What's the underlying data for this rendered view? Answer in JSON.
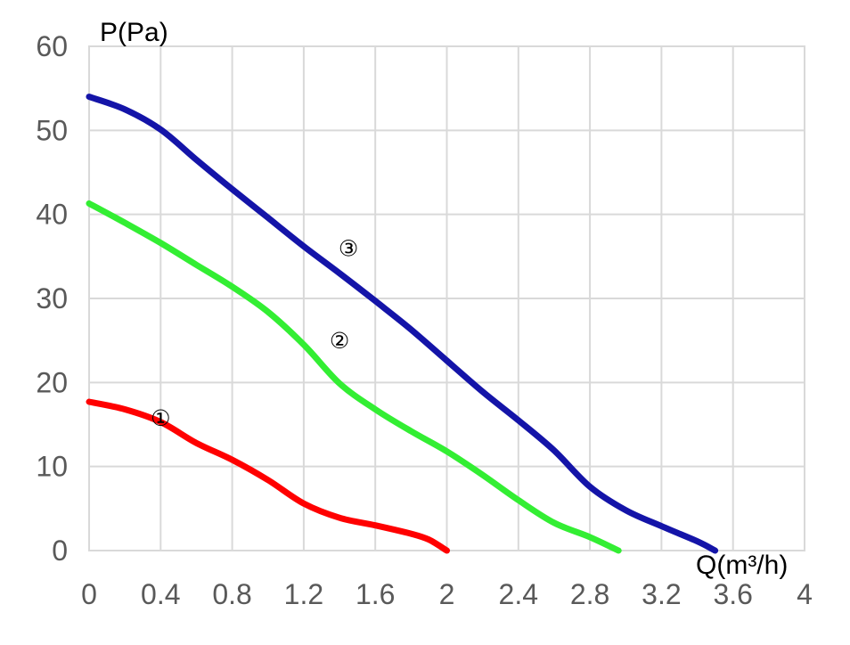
{
  "chart_data": {
    "type": "line",
    "title": "",
    "xlabel": "Q(m³/h)",
    "ylabel": "P(Pa)",
    "xlim": [
      0,
      4
    ],
    "ylim": [
      0,
      60
    ],
    "x_ticks": [
      "0",
      "0.4",
      "0.8",
      "1.2",
      "1.6",
      "2",
      "2.4",
      "2.8",
      "3.2",
      "3.6",
      "4"
    ],
    "y_ticks": [
      "0",
      "10",
      "20",
      "30",
      "40",
      "50",
      "60"
    ],
    "grid": true,
    "legend": "none",
    "series": [
      {
        "marker": "①",
        "color": "#ff0000",
        "marker_at": [
          0.4,
          15.8
        ],
        "points": [
          [
            0,
            17.7
          ],
          [
            0.2,
            16.8
          ],
          [
            0.4,
            15.3
          ],
          [
            0.6,
            12.8
          ],
          [
            0.8,
            10.8
          ],
          [
            1.0,
            8.4
          ],
          [
            1.2,
            5.6
          ],
          [
            1.4,
            3.9
          ],
          [
            1.6,
            3.0
          ],
          [
            1.8,
            2.0
          ],
          [
            1.9,
            1.3
          ],
          [
            2.0,
            0
          ]
        ]
      },
      {
        "marker": "②",
        "color": "#33ee33",
        "marker_at": [
          1.4,
          25.0
        ],
        "points": [
          [
            0,
            41.3
          ],
          [
            0.2,
            39.0
          ],
          [
            0.4,
            36.6
          ],
          [
            0.6,
            34.0
          ],
          [
            0.8,
            31.4
          ],
          [
            1.0,
            28.4
          ],
          [
            1.2,
            24.5
          ],
          [
            1.4,
            19.9
          ],
          [
            1.6,
            16.8
          ],
          [
            1.8,
            14.2
          ],
          [
            2.0,
            11.8
          ],
          [
            2.2,
            9.0
          ],
          [
            2.4,
            6.0
          ],
          [
            2.6,
            3.3
          ],
          [
            2.8,
            1.6
          ],
          [
            2.96,
            0
          ]
        ]
      },
      {
        "marker": "③",
        "color": "#1414a8",
        "marker_at": [
          1.45,
          36.0
        ],
        "points": [
          [
            0,
            54.0
          ],
          [
            0.2,
            52.5
          ],
          [
            0.4,
            50.1
          ],
          [
            0.6,
            46.5
          ],
          [
            0.8,
            43.0
          ],
          [
            1.0,
            39.6
          ],
          [
            1.2,
            36.2
          ],
          [
            1.4,
            33.0
          ],
          [
            1.6,
            29.7
          ],
          [
            1.8,
            26.3
          ],
          [
            2.0,
            22.6
          ],
          [
            2.2,
            18.9
          ],
          [
            2.4,
            15.5
          ],
          [
            2.6,
            11.9
          ],
          [
            2.8,
            7.6
          ],
          [
            3.0,
            4.8
          ],
          [
            3.2,
            2.9
          ],
          [
            3.4,
            1.1
          ],
          [
            3.5,
            0
          ]
        ]
      }
    ]
  }
}
